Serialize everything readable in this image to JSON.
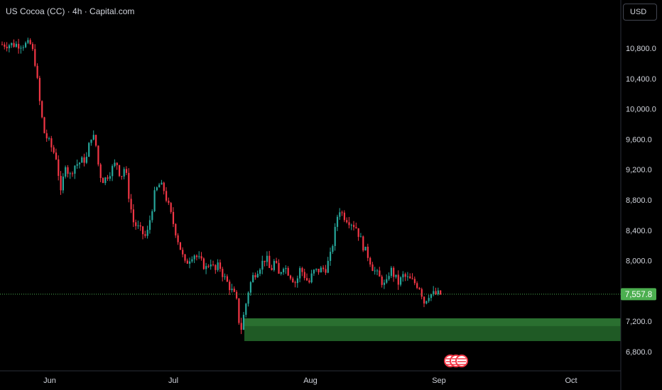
{
  "header": {
    "title": "US Cocoa (CC) · 4h · Capital.com",
    "currency": "USD"
  },
  "colors": {
    "background": "#000000",
    "up": "#26a69a",
    "down": "#f23645",
    "axis_text": "#d1d4dc",
    "zone": "#1f5a25",
    "zone_top": "#2e7d32",
    "price_tag": "#4caf50",
    "price_line": "#4caf50"
  },
  "chart_data": {
    "type": "candlestick",
    "title": "US Cocoa (CC) · 4h · Capital.com",
    "y_ticks": [
      "10,800.0",
      "10,400.0",
      "10,000.0",
      "9,600.0",
      "9,200.0",
      "8,800.0",
      "8,400.0",
      "8,000.0",
      "7,600.0",
      "7,200.0",
      "6,800.0"
    ],
    "y_tick_values": [
      10800,
      10400,
      10000,
      9600,
      9200,
      8800,
      8400,
      8000,
      7600,
      7200,
      6800
    ],
    "x_ticks": [
      "Jun",
      "Jul",
      "Aug",
      "Sep",
      "Oct"
    ],
    "ylim": [
      6600,
      11250
    ],
    "current_price": "7,557.8",
    "current_price_value": 7557.8,
    "support_zone": [
      6940,
      7240
    ],
    "price_path": [
      [
        "May 28",
        10850
      ],
      [
        "May 29",
        10600
      ],
      [
        "May 30",
        10100
      ],
      [
        "May 31",
        9700
      ],
      [
        "Jun 3",
        9350
      ],
      [
        "Jun 4",
        8850
      ],
      [
        "Jun 5",
        9300
      ],
      [
        "Jun 6",
        9100
      ],
      [
        "Jun 7",
        9250
      ],
      [
        "Jun 10",
        9350
      ],
      [
        "Jun 11",
        9650
      ],
      [
        "Jun 12",
        9600
      ],
      [
        "Jun 13",
        9150
      ],
      [
        "Jun 14",
        9050
      ],
      [
        "Jun 17",
        9300
      ],
      [
        "Jun 18",
        9100
      ],
      [
        "Jun 19",
        9250
      ],
      [
        "Jun 20",
        8800
      ],
      [
        "Jun 21",
        8500
      ],
      [
        "Jun 24",
        8300
      ],
      [
        "Jun 25",
        8600
      ],
      [
        "Jun 26",
        8900
      ],
      [
        "Jun 27",
        9000
      ],
      [
        "Jun 28",
        8950
      ],
      [
        "Jul 1",
        8350
      ],
      [
        "Jul 2",
        8150
      ],
      [
        "Jul 3",
        7950
      ],
      [
        "Jul 5",
        8100
      ],
      [
        "Jul 8",
        7900
      ],
      [
        "Jul 9",
        8000
      ],
      [
        "Jul 10",
        7850
      ],
      [
        "Jul 11",
        7950
      ],
      [
        "Jul 12",
        7800
      ],
      [
        "Jul 15",
        7500
      ],
      [
        "Jul 16",
        7050
      ],
      [
        "Jul 17",
        7350
      ],
      [
        "Jul 18",
        7650
      ],
      [
        "Jul 19",
        7800
      ],
      [
        "Jul 22",
        8050
      ],
      [
        "Jul 23",
        7850
      ],
      [
        "Jul 24",
        8000
      ],
      [
        "Jul 25",
        7800
      ],
      [
        "Jul 26",
        7950
      ],
      [
        "Jul 29",
        7700
      ],
      [
        "Jul 30",
        7900
      ],
      [
        "Aug 1",
        7700
      ],
      [
        "Aug 2",
        7850
      ],
      [
        "Aug 5",
        7900
      ],
      [
        "Aug 6",
        8050
      ],
      [
        "Aug 7",
        8350
      ],
      [
        "Aug 8",
        8700
      ],
      [
        "Aug 9",
        8600
      ],
      [
        "Aug 12",
        8450
      ],
      [
        "Aug 13",
        8300
      ],
      [
        "Aug 14",
        8150
      ],
      [
        "Aug 15",
        8050
      ],
      [
        "Aug 16",
        7900
      ],
      [
        "Aug 19",
        7650
      ],
      [
        "Aug 20",
        7900
      ],
      [
        "Aug 21",
        7800
      ],
      [
        "Aug 22",
        7700
      ],
      [
        "Aug 23",
        7800
      ],
      [
        "Aug 26",
        7700
      ],
      [
        "Aug 27",
        7650
      ],
      [
        "Aug 28",
        7450
      ],
      [
        "Aug 29",
        7557.8
      ]
    ]
  }
}
